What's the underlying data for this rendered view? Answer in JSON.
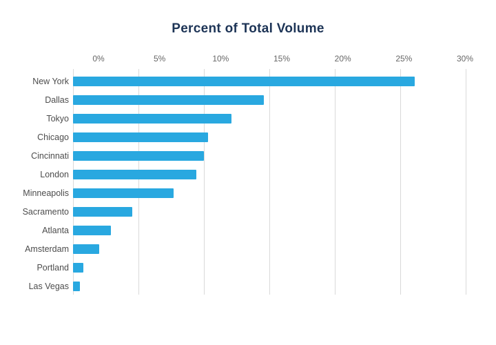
{
  "title": "Percent of Total Volume",
  "colors": {
    "title": "#1d3456",
    "bar": "#29a8e0",
    "gridline": "#d9d9d9",
    "tick_label": "#666666",
    "category_label": "#4c4c4c",
    "background": "#ffffff"
  },
  "chart_data": {
    "type": "bar",
    "orientation": "horizontal",
    "title": "Percent of Total Volume",
    "categories": [
      "New York",
      "Dallas",
      "Tokyo",
      "Chicago",
      "Cincinnati",
      "London",
      "Minneapolis",
      "Sacramento",
      "Atlanta",
      "Amsterdam",
      "Portland",
      "Las Vegas"
    ],
    "values": [
      26.1,
      14.6,
      12.1,
      10.3,
      10.0,
      9.4,
      7.7,
      4.5,
      2.9,
      2.0,
      0.8,
      0.5
    ],
    "value_unit": "%",
    "xlabel": "",
    "ylabel": "",
    "xlim": [
      0,
      30
    ],
    "x_ticks": [
      0,
      5,
      10,
      15,
      20,
      25,
      30
    ],
    "x_tick_labels": [
      "0%",
      "5%",
      "10%",
      "15%",
      "20%",
      "25%",
      "30%"
    ],
    "grid": "vertical",
    "legend": "none",
    "tick_position": "top"
  }
}
